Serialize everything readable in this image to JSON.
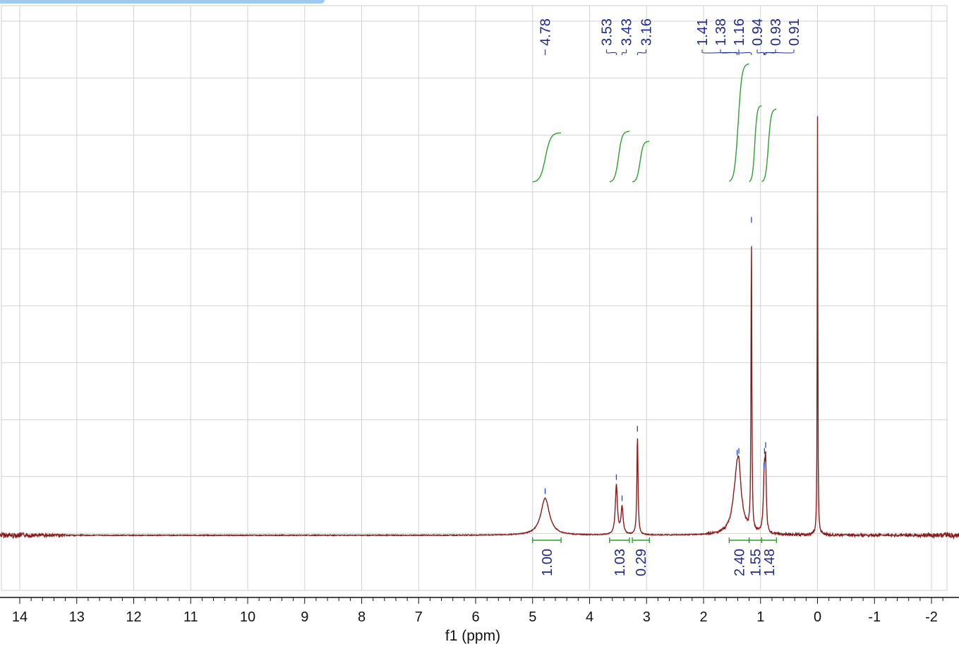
{
  "chart_data": {
    "type": "line",
    "title": "",
    "xlabel": "f1 (ppm)",
    "ylabel": "",
    "xlim": [
      14.2,
      -2.3
    ],
    "x_reversed": true,
    "x_ticks": [
      14,
      13,
      12,
      11,
      10,
      9,
      8,
      7,
      6,
      5,
      4,
      3,
      2,
      1,
      0,
      -1,
      -2
    ],
    "grid": true,
    "series": [
      {
        "peaks": [
          {
            "x": 4.78,
            "height": 0.075,
            "width": 0.09,
            "shape": "lorentz"
          },
          {
            "x": 3.53,
            "height": 0.1,
            "width": 0.022,
            "shape": "lorentz"
          },
          {
            "x": 3.43,
            "height": 0.055,
            "width": 0.022,
            "shape": "lorentz"
          },
          {
            "x": 3.16,
            "height": 0.2,
            "width": 0.012,
            "shape": "lorentz"
          },
          {
            "x": 1.41,
            "height": 0.12,
            "width": 0.08,
            "shape": "lorentz"
          },
          {
            "x": 1.38,
            "height": 0.05,
            "width": 0.04,
            "shape": "lorentz"
          },
          {
            "x": 1.16,
            "height": 0.61,
            "width": 0.008,
            "shape": "lorentz"
          },
          {
            "x": 0.94,
            "height": 0.05,
            "width": 0.02,
            "shape": "lorentz"
          },
          {
            "x": 0.93,
            "height": 0.08,
            "width": 0.015,
            "shape": "lorentz"
          },
          {
            "x": 0.91,
            "height": 0.12,
            "width": 0.012,
            "shape": "lorentz"
          },
          {
            "x": 0.0,
            "height": 0.85,
            "width": 0.006,
            "shape": "lorentz"
          }
        ],
        "color": "#8b1a1a"
      }
    ],
    "peak_labels": [
      "4.78",
      "3.53",
      "3.43",
      "3.16",
      "1.41",
      "1.38",
      "1.16",
      "0.94",
      "0.93",
      "0.91"
    ],
    "peak_label_positions": [
      4.78,
      3.53,
      3.43,
      3.16,
      1.41,
      1.38,
      1.16,
      0.94,
      0.93,
      0.91
    ],
    "integrals": [
      {
        "from": 5.0,
        "to": 4.5,
        "value": "1.00"
      },
      {
        "from": 3.65,
        "to": 3.3,
        "value": "1.03"
      },
      {
        "from": 3.25,
        "to": 2.95,
        "value": "0.29"
      },
      {
        "from": 1.55,
        "to": 1.2,
        "value": "2.40"
      },
      {
        "from": 1.2,
        "to": 0.98,
        "value": "1.55"
      },
      {
        "from": 0.98,
        "to": 0.72,
        "value": "1.48"
      }
    ],
    "colors": {
      "spectrum": "#8b1a1a",
      "labels": "#1f2a8a",
      "integral": "#2e9e2e",
      "peak_marker": "#2244cc",
      "grid": "#d2d2d2"
    }
  }
}
